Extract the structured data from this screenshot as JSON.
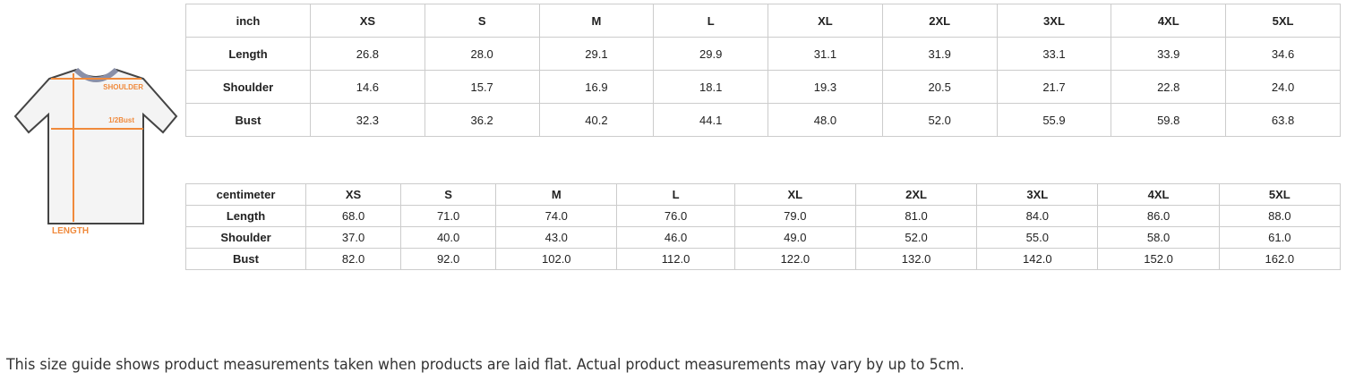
{
  "diagram": {
    "shoulder": "SHOULDER",
    "bust": "1/2Bust",
    "length": "LENGTH",
    "accent": "#f08a3c"
  },
  "inch_table": {
    "headers": [
      "inch",
      "XS",
      "S",
      "M",
      "L",
      "XL",
      "2XL",
      "3XL",
      "4XL",
      "5XL"
    ],
    "rows": [
      {
        "label": "Length",
        "values": [
          "26.8",
          "28.0",
          "29.1",
          "29.9",
          "31.1",
          "31.9",
          "33.1",
          "33.9",
          "34.6"
        ]
      },
      {
        "label": "Shoulder",
        "values": [
          "14.6",
          "15.7",
          "16.9",
          "18.1",
          "19.3",
          "20.5",
          "21.7",
          "22.8",
          "24.0"
        ]
      },
      {
        "label": "Bust",
        "values": [
          "32.3",
          "36.2",
          "40.2",
          "44.1",
          "48.0",
          "52.0",
          "55.9",
          "59.8",
          "63.8"
        ]
      }
    ]
  },
  "cm_table": {
    "headers": [
      "centimeter",
      "XS",
      "S",
      "M",
      "L",
      "XL",
      "2XL",
      "3XL",
      "4XL",
      "5XL"
    ],
    "rows": [
      {
        "label": "Length",
        "values": [
          "68.0",
          "71.0",
          "74.0",
          "76.0",
          "79.0",
          "81.0",
          "84.0",
          "86.0",
          "88.0"
        ]
      },
      {
        "label": "Shoulder",
        "values": [
          "37.0",
          "40.0",
          "43.0",
          "46.0",
          "49.0",
          "52.0",
          "55.0",
          "58.0",
          "61.0"
        ]
      },
      {
        "label": "Bust",
        "values": [
          "82.0",
          "92.0",
          "102.0",
          "112.0",
          "122.0",
          "132.0",
          "142.0",
          "152.0",
          "162.0"
        ]
      }
    ]
  },
  "note": "This size guide shows product measurements taken when products are laid flat. Actual product measurements may vary by up to 5cm."
}
